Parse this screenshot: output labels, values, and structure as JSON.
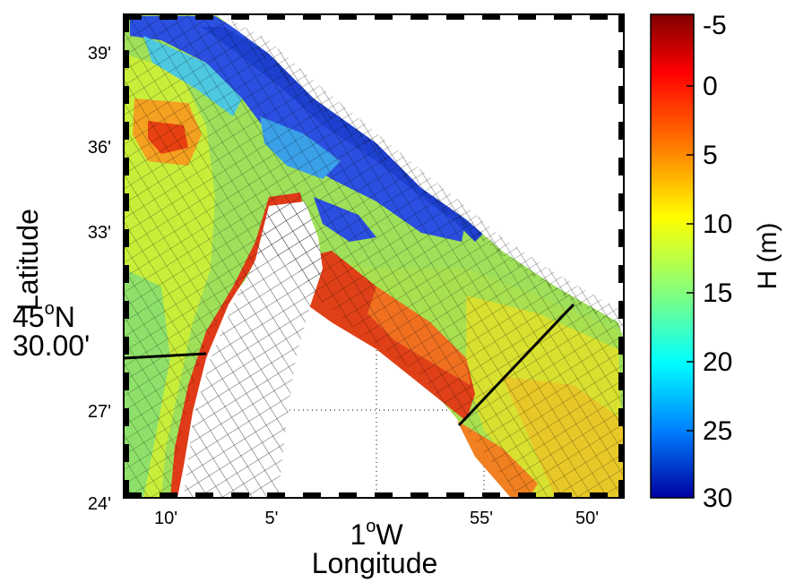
{
  "map": {
    "x_ticks": [
      "10'",
      "5'",
      "55'",
      "50'"
    ],
    "y_ticks": [
      "39'",
      "36'",
      "33'",
      "27'",
      "24'"
    ],
    "x_center": {
      "value": "1",
      "sup": "o",
      "suffix": "W"
    },
    "y_center": {
      "prefix": "45",
      "sup": "o",
      "suffix": "N",
      "minutes": "30.00'"
    },
    "xlabel": "Longitude",
    "ylabel": "Latitude"
  },
  "colorbar": {
    "label": "H (m)",
    "ticks": [
      "-5",
      "0",
      "5",
      "10",
      "15",
      "20",
      "25",
      "30"
    ],
    "range": [
      -5,
      30
    ],
    "colormap": "jet-reversed",
    "colors": [
      "#7f0000",
      "#ff0000",
      "#ff8000",
      "#ffff00",
      "#80ff80",
      "#00ffff",
      "#0080ff",
      "#0000a0"
    ]
  }
}
